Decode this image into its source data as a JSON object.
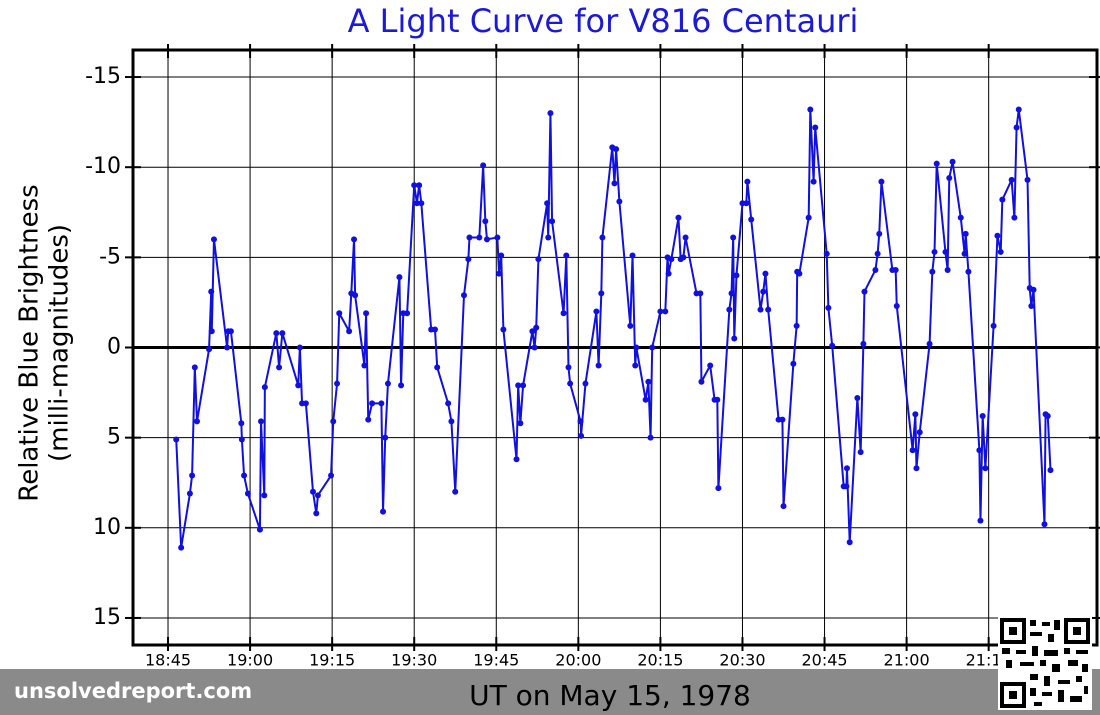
{
  "chart_data": {
    "type": "line",
    "title": "A Light Curve for V816 Centauri",
    "ylabel": [
      "Relative Blue Brightness",
      "(milli-magnitudes)"
    ],
    "xlabel": "UT on May 15, 1978",
    "watermark": "unsolvedreport.com",
    "color": "#1010e0",
    "grid": true,
    "zero_line": true,
    "xlim": [
      1118.6,
      1294.8
    ],
    "ylim": [
      16.5,
      -16.5
    ],
    "yticks": [
      -15,
      -10,
      -5,
      0,
      5,
      10,
      15
    ],
    "xticks": [
      {
        "value": 1125,
        "label": "18:45"
      },
      {
        "value": 1140,
        "label": "19:00"
      },
      {
        "value": 1155,
        "label": "19:15"
      },
      {
        "value": 1170,
        "label": "19:30"
      },
      {
        "value": 1185,
        "label": "19:45"
      },
      {
        "value": 1200,
        "label": "20:00"
      },
      {
        "value": 1215,
        "label": "20:15"
      },
      {
        "value": 1230,
        "label": "20:30"
      },
      {
        "value": 1245,
        "label": "20:45"
      },
      {
        "value": 1260,
        "label": "21:00"
      },
      {
        "value": 1275,
        "label": "21:15"
      }
    ],
    "x": [
      1126.5,
      1127.4,
      1129.0,
      1129.4,
      1129.9,
      1130.3,
      1132.5,
      1132.9,
      1133.0,
      1133.4,
      1135.8,
      1136.0,
      1136.5,
      1138.4,
      1138.5,
      1138.9,
      1139.6,
      1141.8,
      1142.0,
      1142.6,
      1142.7,
      1144.8,
      1145.3,
      1145.9,
      1148.8,
      1149.1,
      1149.5,
      1150.2,
      1151.5,
      1152.1,
      1152.4,
      1154.8,
      1155.2,
      1155.9,
      1156.3,
      1158.1,
      1158.5,
      1159.0,
      1159.2,
      1160.9,
      1161.2,
      1161.6,
      1162.3,
      1164.0,
      1164.3,
      1164.7,
      1165.2,
      1167.3,
      1167.6,
      1168.0,
      1168.7,
      1170.0,
      1170.5,
      1170.9,
      1171.3,
      1173.1,
      1173.8,
      1174.2,
      1176.2,
      1176.8,
      1177.5,
      1179.1,
      1179.9,
      1180.1,
      1181.9,
      1182.6,
      1183.0,
      1183.3,
      1185.2,
      1185.5,
      1185.9,
      1186.3,
      1188.7,
      1189.0,
      1189.4,
      1189.9,
      1191.6,
      1192.0,
      1192.3,
      1192.7,
      1194.3,
      1194.5,
      1194.9,
      1195.2,
      1197.3,
      1197.8,
      1198.2,
      1198.5,
      1200.4,
      1200.5,
      1201.3,
      1203.3,
      1203.7,
      1204.2,
      1204.4,
      1206.2,
      1206.6,
      1206.9,
      1207.5,
      1209.5,
      1209.9,
      1210.4,
      1210.6,
      1212.3,
      1212.8,
      1213.2,
      1213.5,
      1215.0,
      1215.9,
      1216.3,
      1216.5,
      1217.0,
      1218.3,
      1218.7,
      1219.2,
      1219.6,
      1221.6,
      1222.3,
      1222.5,
      1224.1,
      1224.9,
      1225.4,
      1225.6,
      1227.6,
      1228.0,
      1228.3,
      1228.5,
      1228.9,
      1230.0,
      1230.7,
      1230.9,
      1231.6,
      1233.3,
      1233.8,
      1234.2,
      1234.7,
      1236.6,
      1237.3,
      1237.5,
      1239.3,
      1239.9,
      1240.0,
      1240.4,
      1242.1,
      1242.4,
      1243.0,
      1243.3,
      1245.4,
      1245.7,
      1246.4,
      1248.5,
      1249.0,
      1249.1,
      1249.6,
      1251.0,
      1251.6,
      1252.1,
      1252.3,
      1254.3,
      1254.7,
      1255.0,
      1255.4,
      1257.4,
      1258.0,
      1258.2,
      1261.1,
      1261.6,
      1261.8,
      1262.4,
      1264.2,
      1264.7,
      1265.1,
      1265.5,
      1267.1,
      1267.5,
      1267.8,
      1268.4,
      1269.9,
      1270.6,
      1270.8,
      1271.3,
      1273.3,
      1273.5,
      1273.9,
      1274.4,
      1275.9,
      1276.6,
      1277.2,
      1277.5,
      1279.2,
      1279.7,
      1280.1,
      1280.5,
      1282.1,
      1282.5,
      1282.8,
      1283.2,
      1285.2,
      1285.4,
      1285.8,
      1286.3
    ],
    "values": [
      5.1,
      11.1,
      8.1,
      7.1,
      1.1,
      4.1,
      0.1,
      -3.1,
      -0.9,
      -6,
      0,
      -0.9,
      -0.9,
      4.2,
      5.1,
      7.1,
      8.1,
      10.1,
      4.1,
      8.2,
      2.2,
      -0.8,
      1.1,
      -0.8,
      2.1,
      0,
      3.1,
      3.1,
      8,
      9.2,
      8.2,
      7.1,
      4.1,
      2,
      -1.9,
      -0.9,
      -3,
      -6,
      -2.9,
      1,
      -1.9,
      4,
      3.1,
      3.1,
      9.1,
      5,
      2,
      -3.9,
      2.1,
      -1.9,
      -1.9,
      -9,
      -8,
      -9,
      -8,
      -1,
      -1,
      1.1,
      3.1,
      4.1,
      8,
      -2.9,
      -4.9,
      -6.1,
      -6.1,
      -10.1,
      -7,
      -6,
      -6.1,
      -4.1,
      -5.1,
      -1,
      6.2,
      2.1,
      4.2,
      2.1,
      -0.9,
      0,
      -1.1,
      -4.9,
      -8,
      -6.1,
      -13,
      -7,
      -1.9,
      -5.1,
      1.1,
      2,
      4.1,
      4.9,
      2,
      -2,
      1,
      -3,
      -6.1,
      -11.1,
      -9.1,
      -11,
      -8.1,
      -1.2,
      -5.1,
      1,
      0,
      2.9,
      1.9,
      5,
      0,
      -2,
      -2,
      -5,
      -4.1,
      -4.9,
      -7.2,
      -4.9,
      -5,
      -6.1,
      -3,
      -3,
      1.9,
      1,
      2.9,
      2.9,
      7.8,
      -2.1,
      -3,
      -6.1,
      -0.5,
      -4,
      -8,
      -8,
      -9.2,
      -7.1,
      -2.1,
      -3.1,
      -4.1,
      -2.1,
      4,
      4,
      8.8,
      0.9,
      -1.2,
      -4.2,
      -4.1,
      -7.2,
      -13.2,
      -9.2,
      -12.2,
      -5.2,
      -2.2,
      -0.1,
      7.7,
      7.7,
      6.7,
      10.8,
      2.8,
      5.8,
      -0.2,
      -3.1,
      -4.3,
      -5.2,
      -6.3,
      -9.2,
      -4.3,
      -4.3,
      -2.3,
      5.7,
      3.7,
      6.7,
      4.7,
      -0.2,
      -4.2,
      -5.3,
      -10.2,
      -5.3,
      -4.3,
      -9.4,
      -10.3,
      -7.2,
      -5.2,
      -6.3,
      -4.2,
      5.7,
      9.6,
      3.8,
      6.7,
      -1.2,
      -6.2,
      -5.3,
      -8.2,
      -9.3,
      -7.2,
      -12.2,
      -13.2,
      -9.3,
      -3.3,
      -2.3,
      -3.2,
      9.8,
      3.7,
      3.8,
      6.8
    ]
  }
}
